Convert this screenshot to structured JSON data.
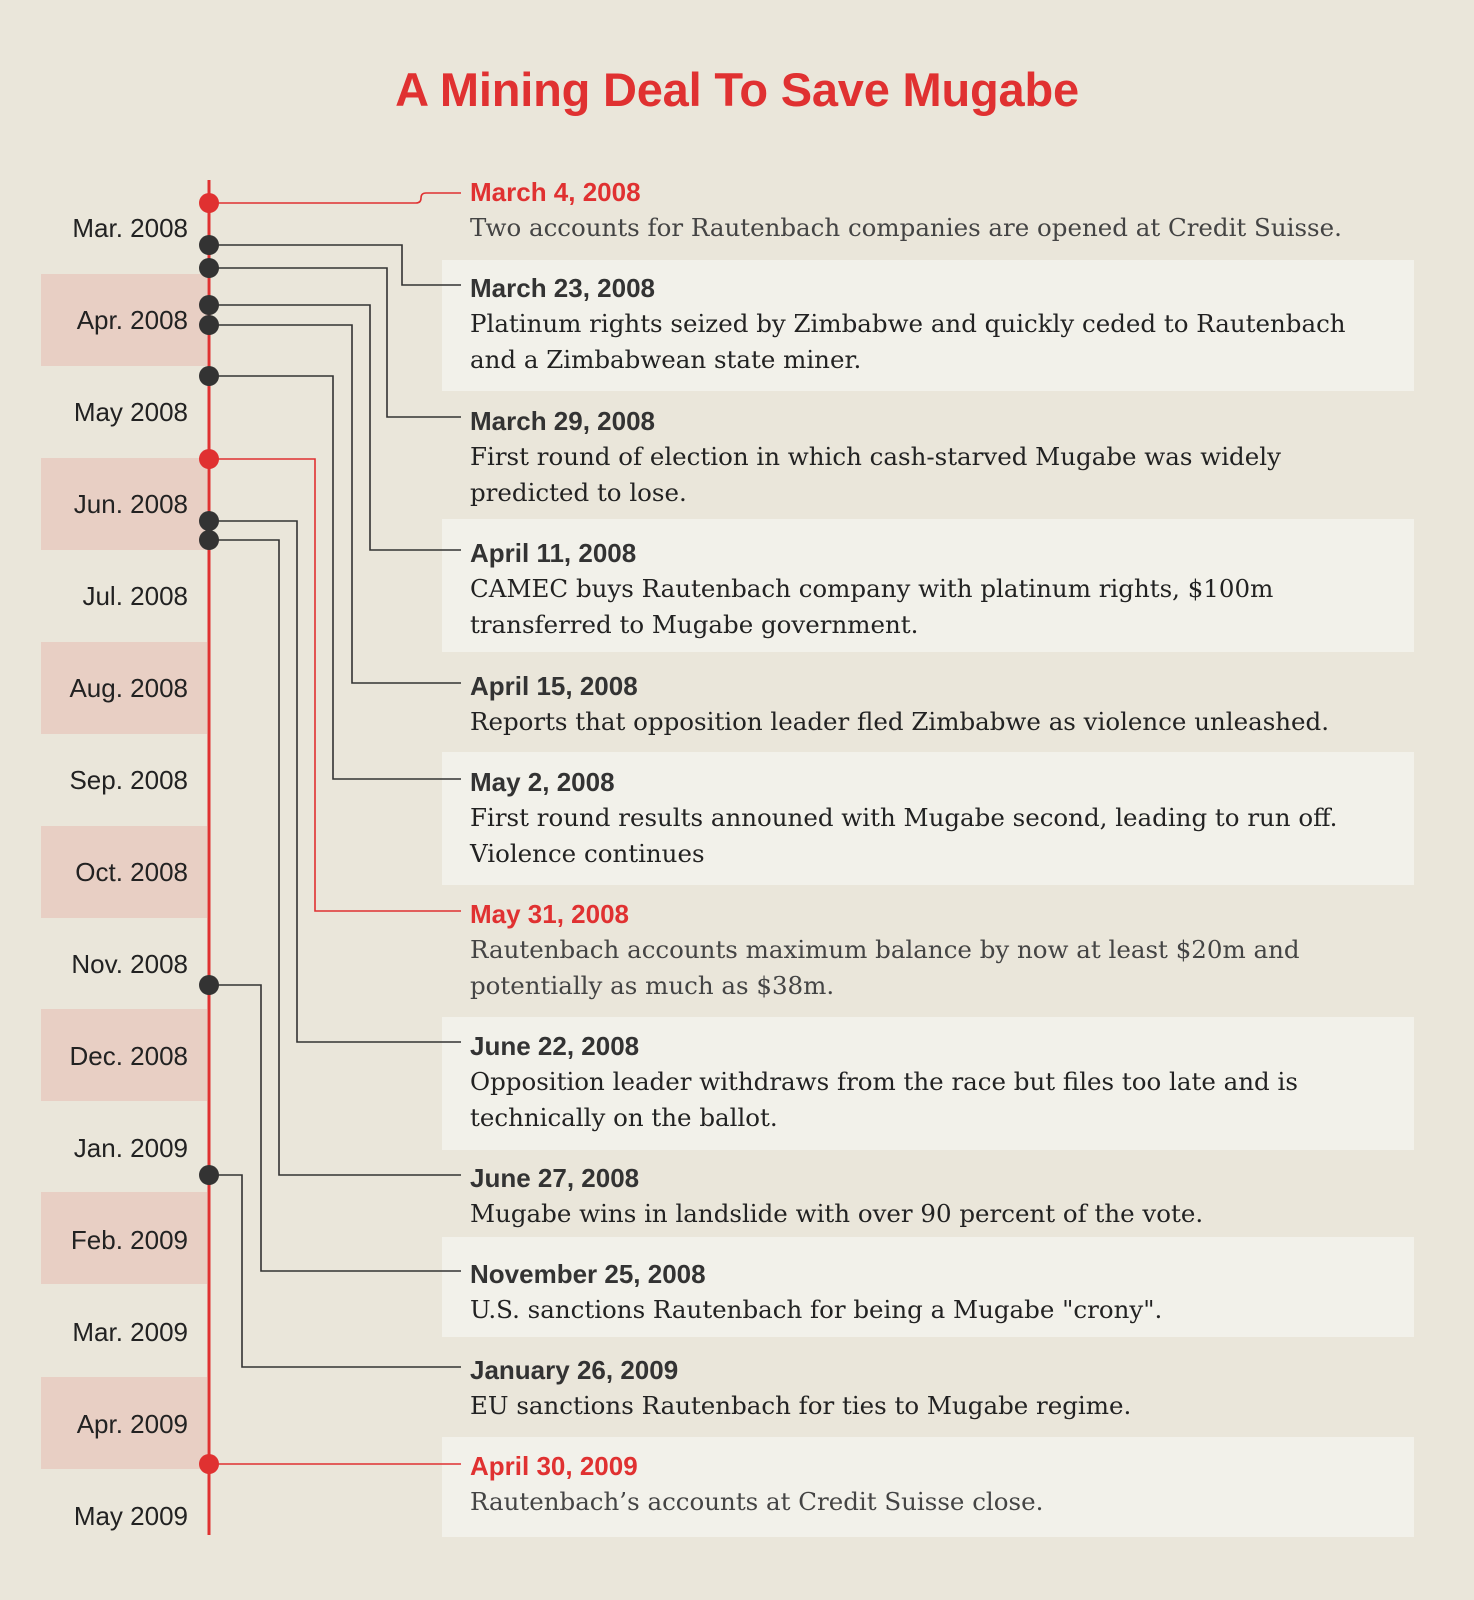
{
  "title": "A Mining Deal To Save Mugabe",
  "colors": {
    "background": "#eae6da",
    "accent_red": "#e03131",
    "marker_dark": "#333333",
    "band_pink": "#e8cfc4",
    "box_light": "#f2f1ea"
  },
  "timeline": {
    "months": [
      "Mar. 2008",
      "Apr. 2008",
      "May 2008",
      "Jun. 2008",
      "Jul. 2008",
      "Aug. 2008",
      "Sep. 2008",
      "Oct. 2008",
      "Nov. 2008",
      "Dec. 2008",
      "Jan. 2009",
      "Feb. 2009",
      "Mar. 2009",
      "Apr. 2009",
      "May 2009"
    ]
  },
  "events": [
    {
      "date": "March 4, 2008",
      "text": "Two accounts for Rautenbach companies are opened at Credit Suisse.",
      "highlight": true
    },
    {
      "date": "March 23, 2008",
      "text": "Platinum rights seized by Zimbabwe and quickly ceded to Rautenbach\nand a Zimbabwean state miner.",
      "highlight": false
    },
    {
      "date": "March 29, 2008",
      "text": "First round of election in which cash-starved Mugabe was widely\npredicted to lose.",
      "highlight": false
    },
    {
      "date": "April 11, 2008",
      "text": "CAMEC buys Rautenbach company with platinum rights, $100m\ntransferred to Mugabe government.",
      "highlight": false
    },
    {
      "date": "April 15, 2008",
      "text": "Reports that opposition leader fled Zimbabwe as violence unleashed.",
      "highlight": false
    },
    {
      "date": "May 2, 2008",
      "text": "First round results announed with Mugabe second, leading to run off.\nViolence continues",
      "highlight": false
    },
    {
      "date": "May 31, 2008",
      "text": "Rautenbach accounts maximum balance by now at least $20m and\npotentially as much as $38m.",
      "highlight": true
    },
    {
      "date": "June 22, 2008",
      "text": "Opposition leader withdraws from the race but files too late and is\ntechnically on the ballot.",
      "highlight": false
    },
    {
      "date": "June 27, 2008",
      "text": "Mugabe wins in landslide with over 90 percent of the vote.",
      "highlight": false
    },
    {
      "date": "November 25, 2008",
      "text": "U.S. sanctions Rautenbach for being a Mugabe \"crony\".",
      "highlight": false
    },
    {
      "date": "January 26, 2009",
      "text": "EU sanctions Rautenbach for ties to Mugabe regime.",
      "highlight": false
    },
    {
      "date": "April 30, 2009",
      "text": "Rautenbach’s accounts at Credit Suisse close.",
      "highlight": true
    }
  ]
}
